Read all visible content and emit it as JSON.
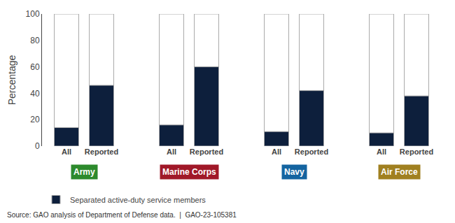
{
  "chart_data": {
    "type": "bar",
    "categories": [
      "All",
      "Reported",
      "All",
      "Reported",
      "All",
      "Reported",
      "All",
      "Reported"
    ],
    "groups": [
      {
        "name": "Army",
        "color": "#2d8a2d"
      },
      {
        "name": "Marine Corps",
        "color": "#a01828"
      },
      {
        "name": "Navy",
        "color": "#1464a0"
      },
      {
        "name": "Air Force",
        "color": "#a08020"
      }
    ],
    "series": [
      {
        "name": "Separated active-duty service members",
        "color": "#0d1f3c",
        "values": [
          14,
          46,
          16,
          60,
          11,
          42,
          10,
          38
        ]
      }
    ],
    "ylabel": "Percentage",
    "ylim": [
      0,
      100
    ],
    "yticks": [
      0,
      20,
      40,
      60,
      80,
      100
    ],
    "grid": false,
    "legend": "bottom",
    "source": "Source: GAO analysis of Department of Defense data.  |  GAO-23-105381"
  }
}
